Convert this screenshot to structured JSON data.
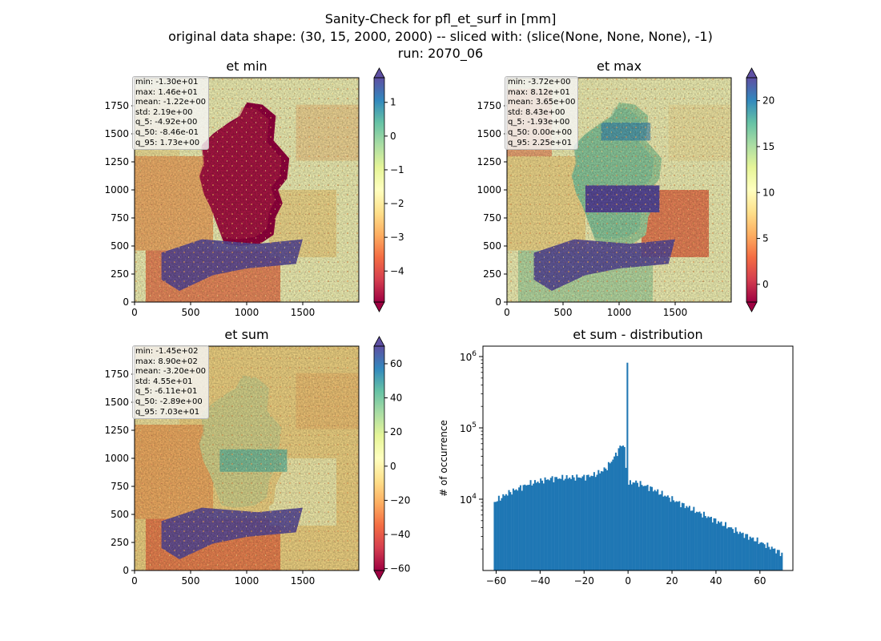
{
  "suptitle": {
    "line1": "Sanity-Check for pfl_et_surf in [mm]",
    "line2": "original data shape: (30, 15, 2000, 2000) -- sliced with: (slice(None, None, None), -1)",
    "line3": "run: 2070_06"
  },
  "colors": {
    "spectral": [
      "#9e0142",
      "#d53e4f",
      "#f46d43",
      "#fdae61",
      "#fee08b",
      "#ffffbf",
      "#e6f598",
      "#abdda4",
      "#66c2a5",
      "#3288bd",
      "#5e4fa2"
    ],
    "hist_bar": "#1f77b4"
  },
  "panels": [
    {
      "title": "et min",
      "stats": [
        "min: -1.30e+01",
        "max: 1.46e+01",
        "mean: -1.22e+00",
        "std: 2.19e+00",
        "q_5: -4.92e+00",
        "q_50: -8.46e-01",
        "q_95: 1.73e+00"
      ],
      "x_ticks": [
        "0",
        "500",
        "1000",
        "1500"
      ],
      "y_ticks": [
        "0",
        "250",
        "500",
        "750",
        "1000",
        "1250",
        "1500",
        "1750"
      ],
      "colorbar": {
        "vmin": -4.92,
        "vmax": 1.73,
        "ticks": [
          "1",
          "0",
          "−1",
          "−2",
          "−3",
          "−4"
        ]
      }
    },
    {
      "title": "et max",
      "stats": [
        "min: -3.72e+00",
        "max: 8.12e+01",
        "mean: 3.65e+00",
        "std: 8.43e+00",
        "q_5: -1.93e+00",
        "q_50: 0.00e+00",
        "q_95: 2.25e+01"
      ],
      "x_ticks": [
        "0",
        "500",
        "1000",
        "1500"
      ],
      "y_ticks": [
        "0",
        "250",
        "500",
        "750",
        "1000",
        "1250",
        "1500",
        "1750"
      ],
      "colorbar": {
        "vmin": -1.93,
        "vmax": 22.5,
        "ticks": [
          "20",
          "15",
          "10",
          "5",
          "0"
        ]
      }
    },
    {
      "title": "et sum",
      "stats": [
        "min: -1.45e+02",
        "max: 8.90e+02",
        "mean: -3.20e+00",
        "std: 4.55e+01",
        "q_5: -6.11e+01",
        "q_50: -2.89e+00",
        "q_95: 7.03e+01"
      ],
      "x_ticks": [
        "0",
        "500",
        "1000",
        "1500"
      ],
      "y_ticks": [
        "0",
        "250",
        "500",
        "750",
        "1000",
        "1250",
        "1500",
        "1750"
      ],
      "colorbar": {
        "vmin": -61.1,
        "vmax": 70.3,
        "ticks": [
          "60",
          "40",
          "20",
          "0",
          "−20",
          "−40",
          "−60"
        ]
      }
    }
  ],
  "chart_data": {
    "type": "bar",
    "title": "et sum - distribution",
    "xlabel": "",
    "ylabel": "# of occurrence",
    "log_y": true,
    "x_ticks": [
      "−60",
      "−40",
      "−20",
      "0",
      "20",
      "40",
      "60"
    ],
    "y_ticks": [
      "10^4",
      "10^5",
      "10^6"
    ],
    "xlim": [
      -66,
      75
    ],
    "ylim": [
      1000,
      1400000
    ],
    "bins": {
      "start": -61.1,
      "end": 70.3,
      "count": 200
    },
    "profile": [
      [
        -61.1,
        9000
      ],
      [
        -55,
        12000
      ],
      [
        -45,
        16500
      ],
      [
        -35,
        19500
      ],
      [
        -28,
        20000
      ],
      [
        -20,
        20500
      ],
      [
        -15,
        22000
      ],
      [
        -10,
        27000
      ],
      [
        -6,
        40000
      ],
      [
        -3,
        58000
      ],
      [
        -1.6,
        55000
      ],
      [
        -0.8,
        20000
      ],
      [
        -0.35,
        820000
      ],
      [
        0.2,
        16500
      ],
      [
        3,
        17500
      ],
      [
        10,
        14500
      ],
      [
        20,
        10000
      ],
      [
        30,
        7000
      ],
      [
        40,
        5000
      ],
      [
        50,
        3500
      ],
      [
        60,
        2500
      ],
      [
        65,
        2100
      ],
      [
        70.3,
        1700
      ]
    ]
  }
}
